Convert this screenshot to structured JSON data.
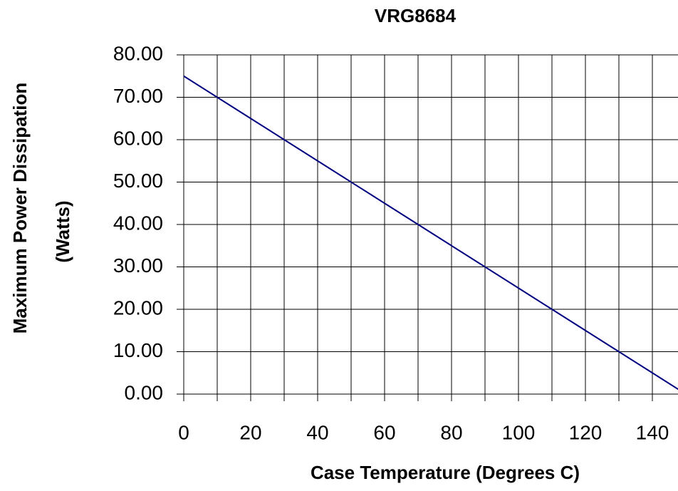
{
  "chart_data": {
    "type": "line",
    "title": "VRG8684",
    "x_label": "Case Temperature (Degrees C)",
    "y_label": [
      "Maximum Power Dissipation",
      "(Watts)"
    ],
    "x": [
      0,
      10,
      20,
      30,
      40,
      50,
      60,
      70,
      80,
      90,
      100,
      110,
      120,
      130,
      140,
      150
    ],
    "series": [
      {
        "name": "VRG8684",
        "color": "#000080",
        "values": [
          75,
          70,
          65,
          60,
          55,
          50,
          45,
          40,
          35,
          30,
          25,
          20,
          15,
          10,
          5,
          0
        ]
      }
    ],
    "xlim": [
      0,
      150
    ],
    "xticks": [
      0,
      20,
      40,
      60,
      80,
      100,
      120,
      140
    ],
    "xgrid": [
      0,
      10,
      20,
      30,
      40,
      50,
      60,
      70,
      80,
      90,
      100,
      110,
      120,
      130,
      140,
      150
    ],
    "ylim": [
      0,
      80
    ],
    "yticks": [
      {
        "value": 0,
        "label": "0.00"
      },
      {
        "value": 10,
        "label": "10.00"
      },
      {
        "value": 20,
        "label": "20.00"
      },
      {
        "value": 30,
        "label": "30.00"
      },
      {
        "value": 40,
        "label": "40.00"
      },
      {
        "value": 50,
        "label": "50.00"
      },
      {
        "value": 60,
        "label": "60.00"
      },
      {
        "value": 70,
        "label": "70.00"
      },
      {
        "value": 80,
        "label": "80.00"
      }
    ],
    "grid": true
  }
}
